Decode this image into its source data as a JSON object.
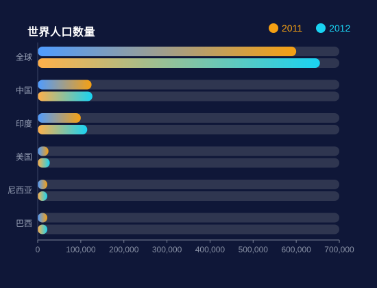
{
  "chart_data": {
    "type": "bar",
    "orientation": "horizontal",
    "title": "世界人口数量",
    "categories": [
      "全球",
      "中国",
      "印度",
      "美国",
      "尼西亚",
      "巴西"
    ],
    "series": [
      {
        "name": "2011",
        "values": [
          600000,
          125000,
          100000,
          25000,
          21000,
          15000
        ],
        "color": "#f5a013",
        "gradient_start": "#4f9cff"
      },
      {
        "name": "2012",
        "values": [
          655000,
          127000,
          115000,
          28000,
          22000,
          17000
        ],
        "color": "#19d3f2",
        "gradient_start": "#ffb04a"
      }
    ],
    "xlim": [
      0,
      700000
    ],
    "xticks": [
      "0",
      "100,000",
      "200,000",
      "300,000",
      "400,000",
      "500,000",
      "600,000",
      "700,000"
    ],
    "background_bar_color": "#2f3650",
    "legend_position": "top-right",
    "grid": false
  }
}
